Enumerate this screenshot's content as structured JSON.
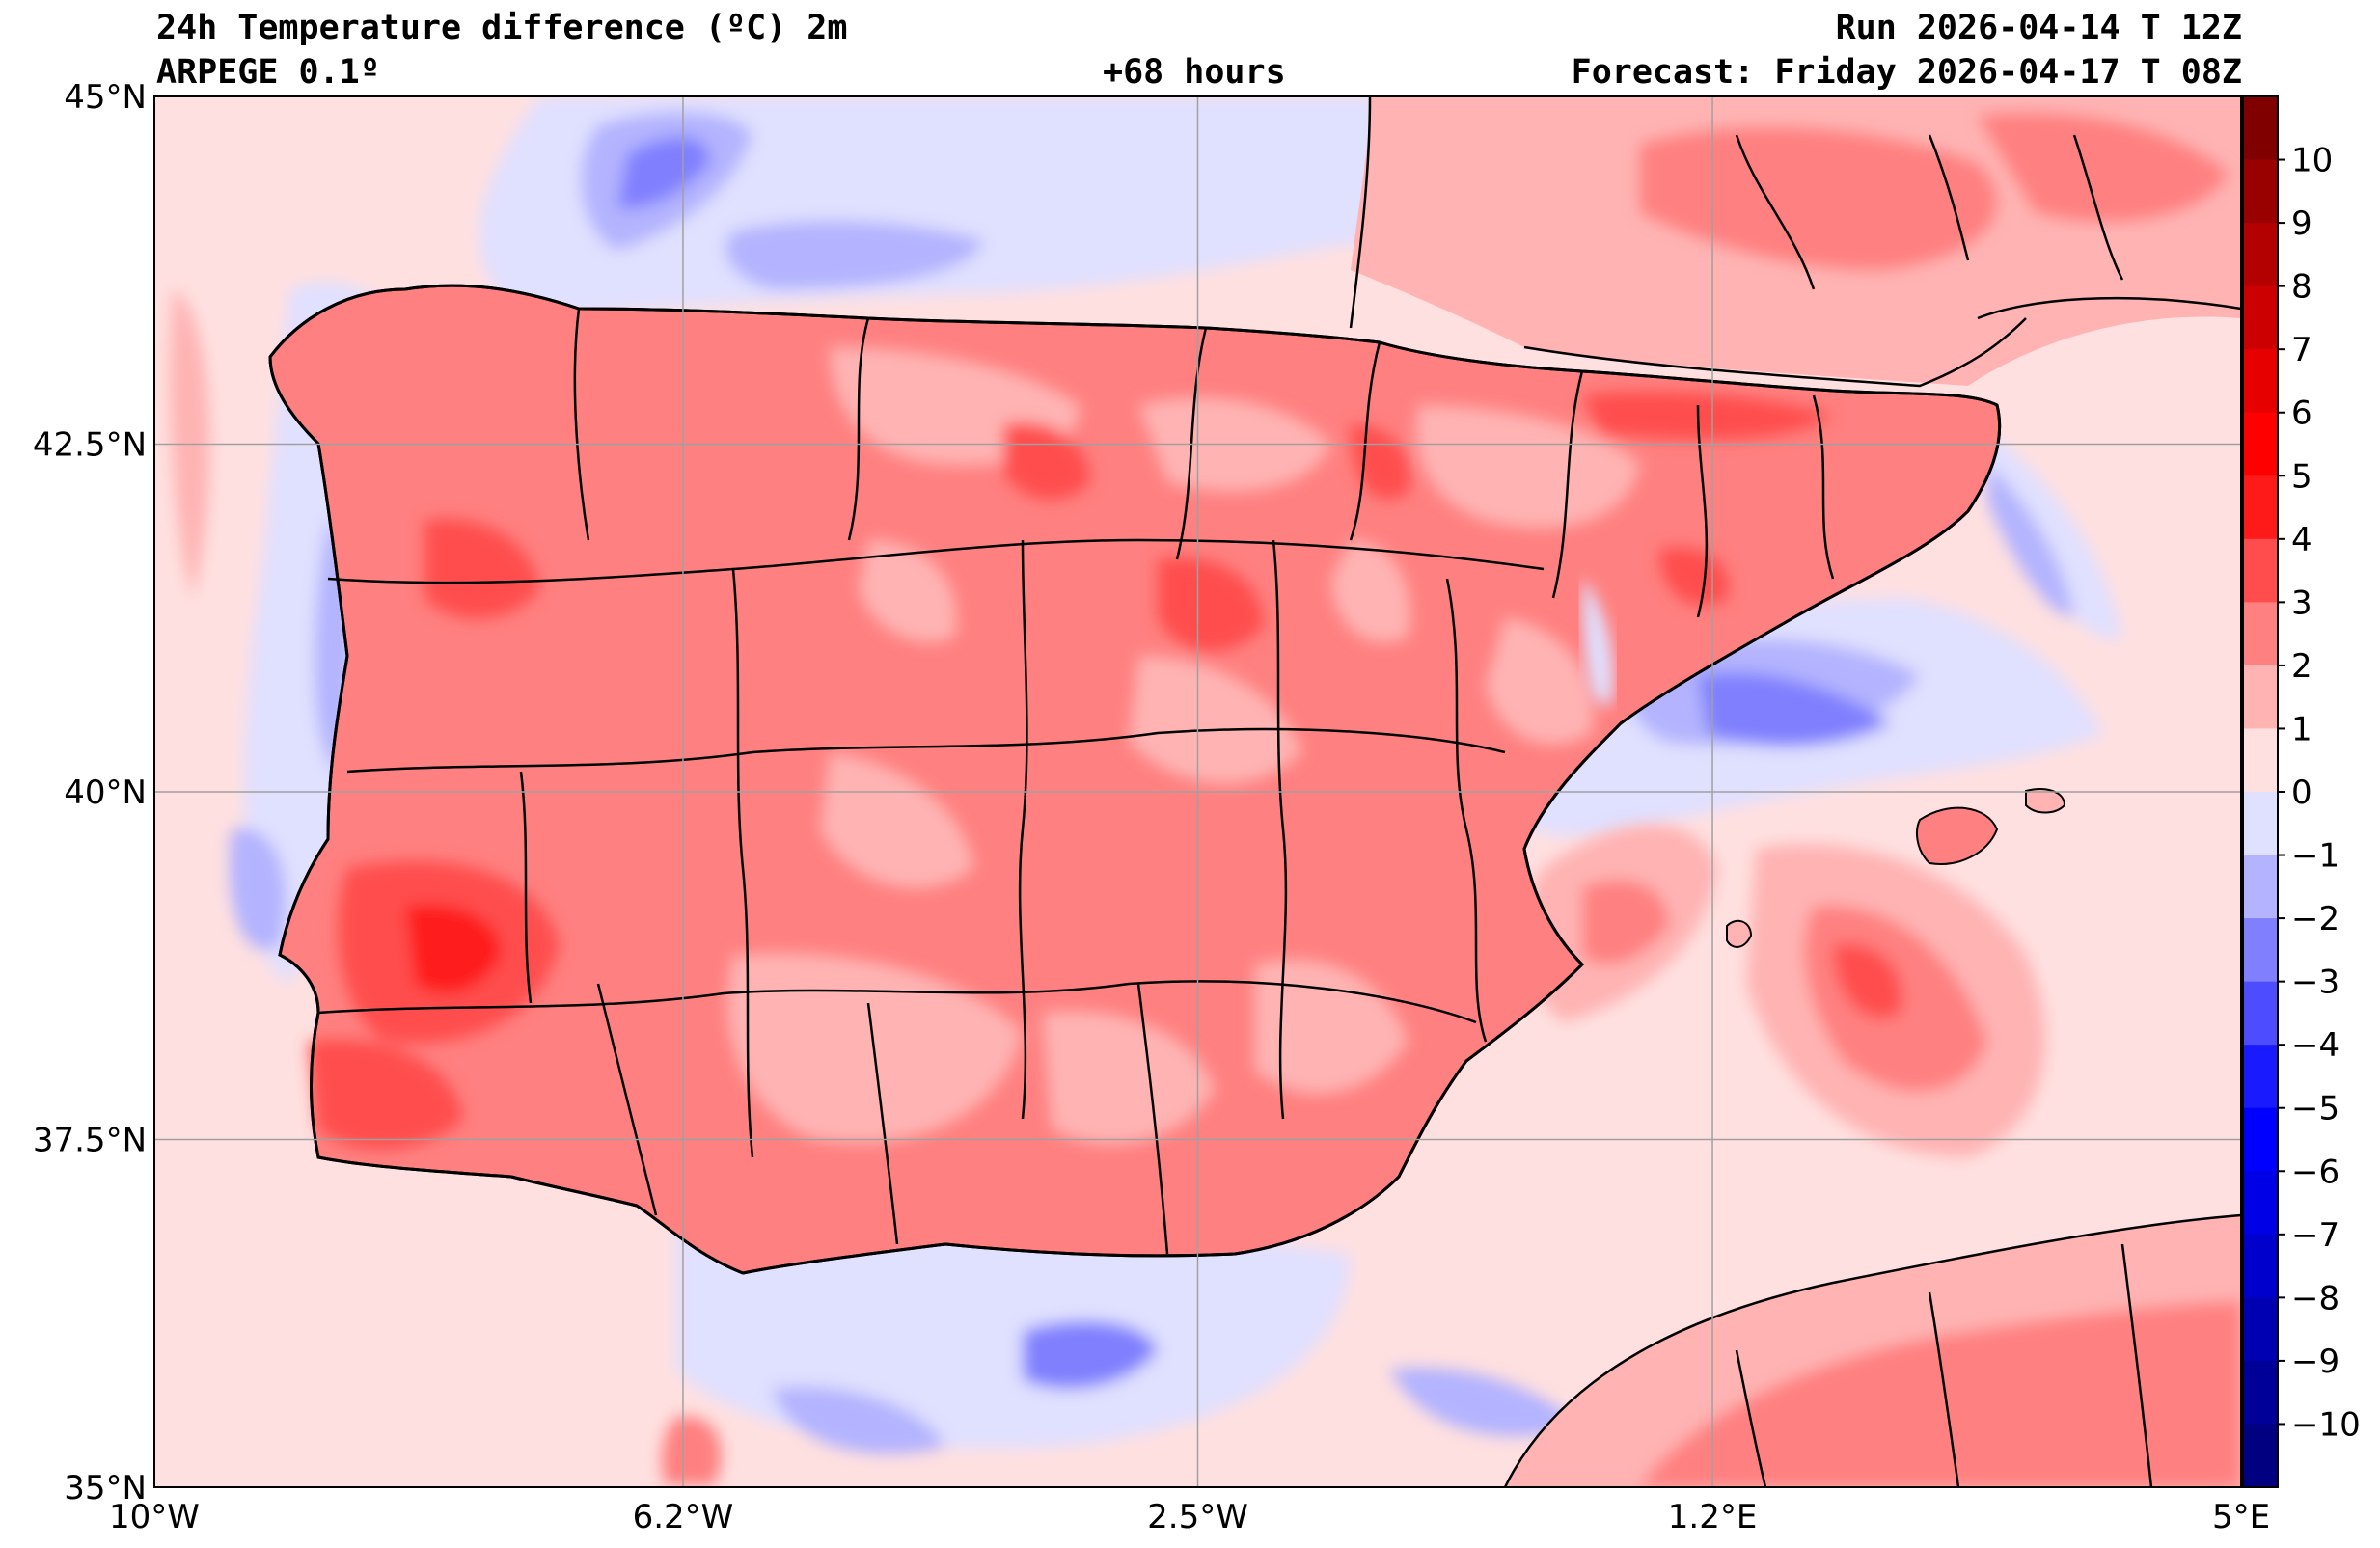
{
  "header": {
    "title": "24h Temperature difference (ºC) 2m",
    "model": "ARPEGE 0.1º",
    "lead": "+68 hours",
    "run": "Run 2026-04-14 T 12Z",
    "forecast": "Forecast: Friday 2026-04-17 T 08Z"
  },
  "map": {
    "lon_range": [
      -10,
      5
    ],
    "lat_range": [
      35,
      45
    ],
    "lon_ticks": [
      {
        "value": -10,
        "label": "10°W"
      },
      {
        "value": -6.2,
        "label": "6.2°W"
      },
      {
        "value": -2.5,
        "label": "2.5°W"
      },
      {
        "value": 1.2,
        "label": "1.2°E"
      },
      {
        "value": 5,
        "label": "5°E"
      }
    ],
    "lat_ticks": [
      {
        "value": 45,
        "label": "45°N"
      },
      {
        "value": 42.5,
        "label": "42.5°N"
      },
      {
        "value": 40,
        "label": "40°N"
      },
      {
        "value": 37.5,
        "label": "37.5°N"
      },
      {
        "value": 35,
        "label": "35°N"
      }
    ],
    "grid": true
  },
  "colorbar": {
    "min": -11,
    "max": 11,
    "labels": [
      "10",
      "9",
      "8",
      "7",
      "6",
      "5",
      "4",
      "3",
      "2",
      "1",
      "0",
      "−1",
      "−2",
      "−3",
      "−4",
      "−5",
      "−6",
      "−7",
      "−8",
      "−9",
      "−10"
    ],
    "label_values": [
      10,
      9,
      8,
      7,
      6,
      5,
      4,
      3,
      2,
      1,
      0,
      -1,
      -2,
      -3,
      -4,
      -5,
      -6,
      -7,
      -8,
      -9,
      -10
    ],
    "colors_top_to_bottom": [
      "#800000",
      "#990000",
      "#b30000",
      "#cc0000",
      "#e60000",
      "#ff0000",
      "#ff1a1a",
      "#ff4d4d",
      "#ff8080",
      "#ffb3b3",
      "#ffe0e0",
      "#e0e0ff",
      "#b3b3ff",
      "#8080ff",
      "#4d4dff",
      "#1a1aff",
      "#0000ff",
      "#0000e6",
      "#0000cc",
      "#0000b3",
      "#000099",
      "#000080"
    ]
  },
  "colors": {
    "sea_base": "#ffe0e0",
    "land_warm": "#ff8080",
    "cool_1": "#e0e0ff",
    "cool_2": "#b3b3ff",
    "cool_3": "#8080ff",
    "warm_1": "#ffb3b3",
    "warm_3": "#ff4d4d"
  }
}
